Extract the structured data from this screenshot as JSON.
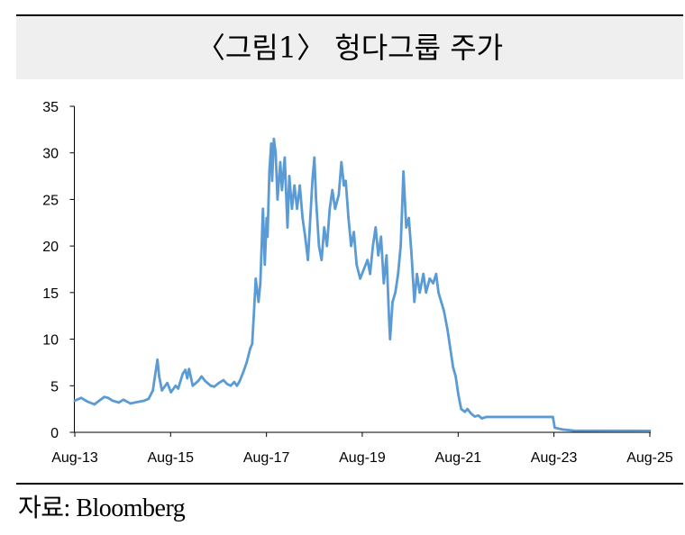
{
  "source": "자료: Bloomberg",
  "colors": {
    "line": "#5B9BD5",
    "title_band": "#EFEFEF",
    "axis": "#000000"
  },
  "chart_data": {
    "type": "line",
    "title": "〈그림1〉 헝다그룹 주가",
    "xlabel": "",
    "ylabel": "",
    "xlim": [
      "2013-08-01",
      "2025-08-01"
    ],
    "ylim": [
      0,
      35
    ],
    "yticks": [
      0,
      5,
      10,
      15,
      20,
      25,
      30,
      35
    ],
    "xticks": [
      {
        "date": "2013-08-01",
        "label": "Aug-13"
      },
      {
        "date": "2015-08-01",
        "label": "Aug-15"
      },
      {
        "date": "2017-08-01",
        "label": "Aug-17"
      },
      {
        "date": "2019-08-01",
        "label": "Aug-19"
      },
      {
        "date": "2021-08-01",
        "label": "Aug-21"
      },
      {
        "date": "2023-08-01",
        "label": "Aug-23"
      },
      {
        "date": "2025-08-01",
        "label": "Aug-25"
      }
    ],
    "grid": false,
    "legend": "none",
    "x": [
      "2013-08-01",
      "2013-09-18",
      "2013-11-05",
      "2013-12-29",
      "2014-02-03",
      "2014-03-14",
      "2014-04-11",
      "2014-05-15",
      "2014-07-02",
      "2014-08-06",
      "2014-09-29",
      "2014-12-08",
      "2015-01-12",
      "2015-02-15",
      "2015-03-19",
      "2015-04-09",
      "2015-04-23",
      "2015-05-06",
      "2015-05-27",
      "2015-07-07",
      "2015-08-04",
      "2015-09-08",
      "2015-09-28",
      "2015-11-02",
      "2015-11-22",
      "2015-12-06",
      "2015-12-20",
      "2016-01-17",
      "2016-02-27",
      "2016-03-24",
      "2016-04-21",
      "2016-06-02",
      "2016-06-29",
      "2016-08-03",
      "2016-09-07",
      "2016-10-04",
      "2016-11-01",
      "2016-11-28",
      "2016-12-19",
      "2017-01-09",
      "2017-02-06",
      "2017-03-03",
      "2017-03-30",
      "2017-04-14",
      "2017-04-28",
      "2017-05-11",
      "2017-06-01",
      "2017-06-15",
      "2017-07-05",
      "2017-07-19",
      "2017-08-02",
      "2017-08-09",
      "2017-08-23",
      "2017-09-06",
      "2017-09-13",
      "2017-09-26",
      "2017-10-10",
      "2017-10-24",
      "2017-11-14",
      "2017-11-27",
      "2017-12-18",
      "2018-01-08",
      "2018-01-22",
      "2018-02-11",
      "2018-03-02",
      "2018-03-22",
      "2018-04-12",
      "2018-05-03",
      "2018-05-23",
      "2018-06-13",
      "2018-06-27",
      "2018-07-17",
      "2018-08-01",
      "2018-08-14",
      "2018-09-05",
      "2018-09-25",
      "2018-10-15",
      "2018-11-05",
      "2018-11-26",
      "2018-12-16",
      "2019-01-06",
      "2019-02-03",
      "2019-02-23",
      "2019-03-14",
      "2019-03-28",
      "2019-04-18",
      "2019-05-08",
      "2019-05-29",
      "2019-06-19",
      "2019-07-16",
      "2019-08-13",
      "2019-09-10",
      "2019-09-30",
      "2019-10-21",
      "2019-11-11",
      "2019-12-01",
      "2019-12-22",
      "2020-01-12",
      "2020-02-02",
      "2020-02-22",
      "2020-02-29",
      "2020-03-19",
      "2020-04-09",
      "2020-04-30",
      "2020-05-20",
      "2020-06-10",
      "2020-07-01",
      "2020-07-21",
      "2020-08-11",
      "2020-09-01",
      "2020-09-21",
      "2020-10-12",
      "2020-11-09",
      "2020-11-29",
      "2020-12-27",
      "2021-01-23",
      "2021-02-14",
      "2021-03-04",
      "2021-03-25",
      "2021-04-15",
      "2021-05-12",
      "2021-06-02",
      "2021-06-23",
      "2021-07-13",
      "2021-08-03",
      "2021-08-24",
      "2021-09-21",
      "2021-10-11",
      "2021-11-08",
      "2021-12-05",
      "2022-01-02",
      "2022-01-29",
      "2022-03-03",
      "2023-07-24",
      "2023-08-07",
      "2023-09-04",
      "2023-10-08",
      "2023-11-11",
      "2023-12-29",
      "2025-07-31"
    ],
    "y": [
      3.4,
      3.7,
      3.3,
      3.0,
      3.4,
      3.8,
      3.7,
      3.4,
      3.2,
      3.5,
      3.1,
      3.3,
      3.4,
      3.6,
      4.5,
      6.5,
      7.8,
      6.0,
      4.5,
      5.3,
      4.3,
      5.0,
      4.7,
      6.3,
      6.7,
      5.8,
      6.8,
      5.0,
      5.5,
      6.0,
      5.5,
      5.0,
      4.9,
      5.3,
      5.6,
      5.2,
      5.0,
      5.4,
      5.0,
      5.5,
      6.5,
      7.5,
      9.0,
      9.5,
      13.0,
      16.5,
      14.0,
      16.0,
      24.0,
      18.0,
      23.0,
      21.0,
      28.0,
      31.0,
      27.0,
      31.5,
      30.0,
      25.0,
      29.0,
      26.0,
      29.5,
      22.0,
      27.5,
      24.0,
      26.5,
      24.0,
      26.5,
      23.0,
      21.0,
      18.5,
      22.0,
      27.0,
      29.5,
      25.0,
      20.0,
      18.5,
      22.0,
      20.0,
      24.0,
      26.0,
      24.0,
      25.5,
      29.0,
      26.5,
      27.0,
      23.0,
      20.0,
      21.5,
      18.0,
      16.5,
      17.5,
      18.5,
      17.0,
      20.0,
      22.0,
      19.0,
      21.0,
      16.0,
      19.0,
      12.0,
      10.0,
      14.0,
      15.0,
      17.0,
      20.0,
      28.0,
      22.0,
      23.0,
      19.0,
      14.0,
      17.0,
      15.0,
      17.0,
      15.0,
      16.5,
      16.0,
      17.0,
      15.0,
      14.0,
      13.0,
      11.0,
      9.0,
      7.0,
      6.0,
      4.0,
      2.5,
      2.2,
      2.5,
      2.0,
      1.7,
      1.8,
      1.5,
      1.65,
      1.65,
      0.5,
      0.4,
      0.3,
      0.25,
      0.18,
      0.16
    ]
  }
}
